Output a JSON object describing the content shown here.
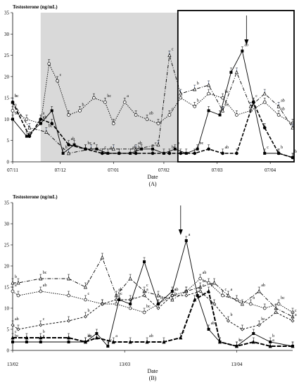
{
  "chart_data": [
    {
      "type": "line",
      "ylabel": "Testosterone (ng/mL)",
      "xlabel": "Date",
      "panel_label": "(A)",
      "ylim": [
        0,
        35
      ],
      "yticks": [
        0,
        5,
        10,
        15,
        20,
        25,
        30,
        35
      ],
      "x_tick_labels": [
        "07/11",
        "07/12",
        "07/01",
        "07/02",
        "07/03",
        "07/04"
      ],
      "x_tick_positions": [
        0,
        0.17,
        0.36,
        0.54,
        0.73,
        0.92
      ],
      "shaded_region": [
        0.1,
        0.59
      ],
      "zoom_box": [
        0.59,
        1.0
      ],
      "arrow_at": 0.835,
      "series": [
        {
          "style": "dotted-open-circle",
          "x": [
            0,
            0.05,
            0.1,
            0.13,
            0.16,
            0.2,
            0.24,
            0.29,
            0.33,
            0.36,
            0.4,
            0.44,
            0.48,
            0.52,
            0.56,
            0.6,
            0.65,
            0.7,
            0.75,
            0.8,
            0.85,
            0.9,
            0.95,
            1.0
          ],
          "y": [
            12,
            10,
            9,
            23,
            19,
            11,
            12,
            15,
            14,
            9,
            14,
            11,
            10,
            9,
            11,
            15,
            13,
            16,
            15,
            11,
            12,
            14,
            11,
            9
          ]
        },
        {
          "style": "dashdot-open-triangle",
          "x": [
            0,
            0.06,
            0.12,
            0.2,
            0.28,
            0.36,
            0.44,
            0.52,
            0.56,
            0.6,
            0.65,
            0.7,
            0.75,
            0.8,
            0.85,
            0.9,
            0.95,
            1.0
          ],
          "y": [
            14,
            8,
            7,
            2,
            3,
            3,
            3,
            4,
            25,
            16,
            17,
            18,
            12,
            21,
            13,
            16,
            13,
            8
          ]
        },
        {
          "style": "solid-filled-square",
          "x": [
            0,
            0.05,
            0.1,
            0.14,
            0.18,
            0.22,
            0.26,
            0.3,
            0.34,
            0.38,
            0.42,
            0.46,
            0.5,
            0.54,
            0.58,
            0.62,
            0.66,
            0.7,
            0.74,
            0.78,
            0.82,
            0.86,
            0.9,
            0.95,
            1.0
          ],
          "y": [
            10,
            6,
            9,
            12,
            2,
            4,
            3,
            3,
            2,
            2,
            2,
            3,
            3,
            2,
            3,
            2,
            3,
            12,
            11,
            21,
            26,
            14,
            2,
            2,
            1
          ]
        },
        {
          "style": "dashed-filled-circle",
          "x": [
            0,
            0.06,
            0.1,
            0.14,
            0.2,
            0.26,
            0.32,
            0.38,
            0.44,
            0.5,
            0.56,
            0.6,
            0.65,
            0.7,
            0.75,
            0.8,
            0.86,
            0.9,
            0.95,
            1.0
          ],
          "y": [
            14,
            6,
            10,
            9,
            4,
            3,
            2,
            2,
            2,
            2,
            2,
            2,
            2,
            3,
            2,
            2,
            14,
            8,
            2,
            1
          ]
        }
      ]
    },
    {
      "type": "line",
      "ylabel": "Testosterone (ng/mL)",
      "xlabel": "Date",
      "panel_label": "(B)",
      "ylim": [
        0,
        35
      ],
      "yticks": [
        0,
        5,
        10,
        15,
        20,
        25,
        30,
        35
      ],
      "x_tick_labels": [
        "13/02",
        "13/03",
        "13/04"
      ],
      "x_tick_positions": [
        0,
        0.4,
        0.8
      ],
      "arrow_at": 0.6,
      "series": [
        {
          "name": "open-circle dotted",
          "style": "dotted-open-circle",
          "x": [
            0,
            0.02,
            0.1,
            0.2,
            0.26,
            0.32,
            0.37,
            0.42,
            0.47,
            0.52,
            0.57,
            0.62,
            0.67,
            0.7,
            0.75,
            0.8,
            0.85,
            0.9,
            0.95,
            1.0
          ],
          "y": [
            14,
            13,
            14,
            13,
            12,
            11,
            11,
            10,
            9,
            11,
            13,
            14,
            17,
            16,
            13,
            12,
            11,
            10,
            11,
            9
          ]
        },
        {
          "name": "open-triangle dashdot",
          "style": "dashdot-open-triangle",
          "x": [
            0,
            0.02,
            0.1,
            0.2,
            0.26,
            0.32,
            0.37,
            0.42,
            0.47,
            0.52,
            0.57,
            0.62,
            0.67,
            0.72,
            0.77,
            0.82,
            0.88,
            0.94,
            1.0
          ],
          "y": [
            16,
            16,
            17,
            17,
            15,
            22,
            13,
            17,
            14,
            13,
            12,
            14,
            15,
            16,
            13,
            11,
            14,
            10,
            8
          ]
        },
        {
          "name": "open-diamond dashed",
          "style": "dashed-open-diamond",
          "x": [
            0,
            0.02,
            0.1,
            0.2,
            0.26,
            0.32,
            0.37,
            0.42,
            0.47,
            0.52,
            0.57,
            0.62,
            0.67,
            0.72,
            0.77,
            0.82,
            0.88,
            0.94,
            1.0
          ],
          "y": [
            6,
            5,
            6,
            7,
            8,
            11,
            12,
            12,
            13,
            10,
            13,
            13,
            14,
            11,
            7,
            5,
            6,
            9,
            7
          ]
        },
        {
          "name": "filled-square solid",
          "style": "solid-filled-square",
          "x": [
            0,
            0.05,
            0.1,
            0.2,
            0.26,
            0.3,
            0.34,
            0.38,
            0.42,
            0.47,
            0.52,
            0.57,
            0.62,
            0.66,
            0.7,
            0.74,
            0.8,
            0.86,
            0.92,
            1.0
          ],
          "y": [
            2,
            2,
            2,
            2,
            2,
            4,
            1,
            12,
            11,
            21,
            11,
            14,
            26,
            13,
            5,
            2,
            1,
            4,
            2,
            1
          ]
        },
        {
          "name": "filled-triangle dashed",
          "style": "dashed-filled-triangle",
          "x": [
            0,
            0.05,
            0.1,
            0.2,
            0.26,
            0.3,
            0.36,
            0.42,
            0.48,
            0.54,
            0.6,
            0.65,
            0.7,
            0.74,
            0.8,
            0.86,
            0.92,
            1.0
          ],
          "y": [
            3,
            3,
            3,
            3,
            2,
            3,
            2,
            2,
            2,
            2,
            3,
            12,
            14,
            2,
            1,
            2,
            1,
            1
          ]
        }
      ],
      "annotations": [
        "a",
        "a",
        "a",
        "a",
        "a",
        "ab",
        "ab",
        "ab",
        "b",
        "b",
        "b",
        "bc",
        "bc",
        "c",
        "c",
        "c"
      ]
    }
  ]
}
